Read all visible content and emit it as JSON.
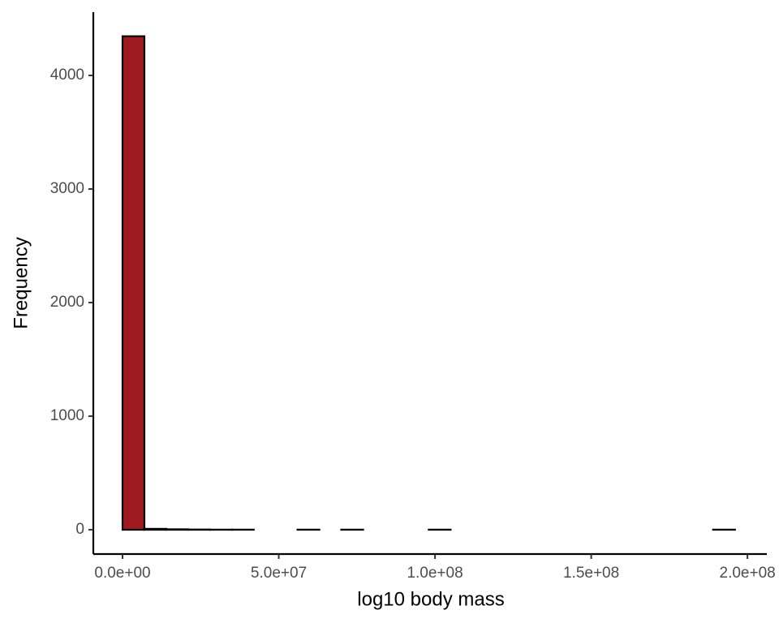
{
  "chart_data": {
    "type": "histogram",
    "xlabel": "log10 body mass",
    "ylabel": "Frequency",
    "bins": [
      0,
      7000000,
      14000000,
      21000000,
      28000000,
      35000000,
      42000000,
      49000000,
      56000000,
      63000000,
      70000000,
      77000000,
      84000000,
      91000000,
      98000000,
      105000000,
      112000000,
      119000000,
      126000000,
      133000000,
      140000000,
      147000000,
      154000000,
      161000000,
      168000000,
      175000000,
      182000000,
      189000000,
      196000000
    ],
    "counts": [
      4345,
      8,
      4,
      2,
      1,
      1,
      0,
      0,
      1,
      0,
      1,
      0,
      0,
      0,
      1,
      0,
      0,
      0,
      0,
      0,
      0,
      0,
      0,
      0,
      0,
      0,
      0,
      1
    ],
    "color": "#9e1a20",
    "edgecolor": "#000000",
    "xlim": [
      -9350000,
      206200000
    ],
    "ylim": [
      -214,
      4557
    ],
    "xticks": [
      {
        "value": 0,
        "label": "0.0e+00"
      },
      {
        "value": 50000000,
        "label": "5.0e+07"
      },
      {
        "value": 100000000,
        "label": "1.0e+08"
      },
      {
        "value": 150000000,
        "label": "1.5e+08"
      },
      {
        "value": 200000000,
        "label": "2.0e+08"
      }
    ],
    "yticks": [
      0,
      1000,
      2000,
      3000,
      4000
    ],
    "grid": false
  }
}
